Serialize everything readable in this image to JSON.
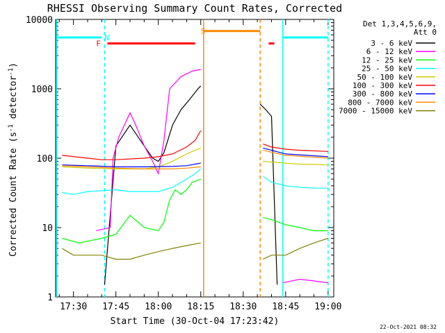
{
  "chart_data": {
    "type": "line",
    "title": "RHESSI Observing Summary Count Rates, Corrected",
    "xlabel": "Start Time (30-Oct-04 17:23:42)",
    "ylabel": "Corrected Count Rate (s⁻¹ detector⁻¹)",
    "ylabel_plain": "Corrected Count Rate (s",
    "ylabel_sup1": "-1",
    "ylabel_mid": " detector",
    "ylabel_sup2": "-1",
    "ylabel_end": ")",
    "yscale": "log",
    "ylim": [
      1,
      10000
    ],
    "xlim": [
      "17:23:42",
      "19:02:00"
    ],
    "y_ticks": [
      "1",
      "10",
      "100",
      "1000",
      "10000"
    ],
    "x_ticks": [
      "17:30",
      "17:45",
      "18:00",
      "18:15",
      "18:30",
      "18:45",
      "19:00"
    ],
    "legend_header": [
      "Det 1,3,4,5,6,9,",
      "Att 0"
    ],
    "legend_position": "right",
    "timestamp": "22-Oct-2021 08:32",
    "gap": [
      "18:16",
      "18:37"
    ],
    "series": [
      {
        "name": "3 - 6 keV",
        "color": "#000000",
        "x": [
          "17:41",
          "17:45",
          "17:50",
          "17:55",
          "17:58",
          "18:00",
          "18:02",
          "18:05",
          "18:08",
          "18:11",
          "18:14",
          "18:15",
          "18:36",
          "18:38",
          "18:40",
          "18:42"
        ],
        "y": [
          1.5,
          150,
          300,
          150,
          100,
          90,
          120,
          300,
          500,
          700,
          1000,
          1100,
          600,
          500,
          400,
          1.5
        ]
      },
      {
        "name": "6 - 12 keV",
        "color": "#ff00ff",
        "x": [
          "17:38",
          "17:43",
          "17:44",
          "17:46",
          "17:50",
          "17:52",
          "17:55",
          "17:58",
          "18:00",
          "18:02",
          "18:04",
          "18:08",
          "18:12",
          "18:15",
          "18:44",
          "18:50",
          "18:55",
          "19:00"
        ],
        "y": [
          9,
          10,
          100,
          200,
          450,
          300,
          150,
          90,
          60,
          180,
          1000,
          1500,
          1800,
          1900,
          1.6,
          1.8,
          1.7,
          1.6
        ]
      },
      {
        "name": "12 - 25 keV",
        "color": "#00ff00",
        "x": [
          "17:26",
          "17:32",
          "17:40",
          "17:45",
          "17:50",
          "17:55",
          "18:00",
          "18:02",
          "18:04",
          "18:06",
          "18:08",
          "18:10",
          "18:12",
          "18:15",
          "18:37",
          "18:40",
          "18:45",
          "18:50",
          "18:55",
          "19:00"
        ],
        "y": [
          7,
          6,
          7,
          8,
          15,
          10,
          9,
          12,
          25,
          35,
          30,
          35,
          45,
          50,
          14,
          13,
          11,
          10,
          9,
          9
        ]
      },
      {
        "name": "25 - 50 keV",
        "color": "#00ffff",
        "x": [
          "17:26",
          "17:30",
          "17:35",
          "17:40",
          "17:45",
          "17:50",
          "17:55",
          "18:00",
          "18:05",
          "18:10",
          "18:13",
          "18:15",
          "18:37",
          "18:40",
          "18:45",
          "18:50",
          "18:55",
          "19:00"
        ],
        "y": [
          32,
          30,
          33,
          34,
          35,
          33,
          33,
          33,
          38,
          50,
          60,
          70,
          55,
          45,
          40,
          38,
          37,
          37
        ]
      },
      {
        "name": "50 - 100 keV",
        "color": "#cccc00",
        "x": [
          "17:26",
          "17:35",
          "17:45",
          "17:55",
          "18:00",
          "18:05",
          "18:10",
          "18:13",
          "18:15",
          "18:37",
          "18:40",
          "18:45",
          "18:50",
          "19:00"
        ],
        "y": [
          75,
          72,
          70,
          70,
          75,
          90,
          115,
          130,
          140,
          90,
          88,
          85,
          82,
          80
        ]
      },
      {
        "name": "100 - 300 keV",
        "color": "#ff0000",
        "x": [
          "17:26",
          "17:35",
          "17:40",
          "17:45",
          "17:55",
          "18:00",
          "18:05",
          "18:10",
          "18:13",
          "18:15",
          "18:37",
          "18:40",
          "18:45",
          "18:50",
          "19:00"
        ],
        "y": [
          110,
          100,
          95,
          95,
          100,
          105,
          115,
          145,
          180,
          250,
          160,
          145,
          135,
          130,
          125
        ]
      },
      {
        "name": "300 - 800 keV",
        "color": "#0000ff",
        "x": [
          "17:26",
          "17:35",
          "17:45",
          "17:55",
          "18:05",
          "18:10",
          "18:15",
          "18:37",
          "18:45",
          "19:00"
        ],
        "y": [
          80,
          78,
          75,
          75,
          76,
          78,
          85,
          140,
          115,
          105
        ]
      },
      {
        "name": "800 - 7000 keV",
        "color": "#ff8800",
        "x": [
          "17:26",
          "17:35",
          "17:45",
          "17:55",
          "18:05",
          "18:10",
          "18:15",
          "18:37",
          "18:45",
          "19:00"
        ],
        "y": [
          78,
          75,
          72,
          70,
          70,
          72,
          75,
          130,
          110,
          100
        ]
      },
      {
        "name": "7000 - 15000 keV",
        "color": "#808000",
        "x": [
          "17:26",
          "17:30",
          "17:35",
          "17:40",
          "17:45",
          "17:50",
          "17:55",
          "18:00",
          "18:05",
          "18:10",
          "18:15",
          "18:37",
          "18:40",
          "18:45",
          "18:50",
          "18:55",
          "19:00"
        ],
        "y": [
          5,
          4,
          4,
          4,
          3.5,
          3.5,
          4,
          4.5,
          5,
          5.5,
          6,
          3.5,
          4,
          4,
          5,
          6,
          7
        ]
      }
    ],
    "flags": [
      {
        "label": "",
        "color": "#00ffff",
        "y": 5500,
        "x": [
          "17:24",
          "17:40"
        ]
      },
      {
        "label": "N",
        "color": "#00ffff",
        "y": 5500,
        "x": [
          "17:40",
          "17:40"
        ],
        "label_at": "17:41"
      },
      {
        "label": "",
        "color": "#00ffff",
        "y": 5500,
        "x": [
          "18:44",
          "19:00"
        ]
      },
      {
        "label": "F",
        "color": "#ff0000",
        "y": 4500,
        "x": [
          "17:42",
          "18:13"
        ],
        "label_at": "17:38"
      },
      {
        "label": "",
        "color": "#ff0000",
        "y": 4500,
        "x": [
          "18:39",
          "18:41"
        ]
      },
      {
        "label": "S",
        "color": "#ff8800",
        "y": 6800,
        "x": [
          "18:16",
          "18:36"
        ],
        "label_at": "18:15"
      }
    ],
    "vlines": [
      {
        "x": "17:24",
        "color": "#00ffff",
        "style": "solid"
      },
      {
        "x": "17:41",
        "color": "#00ffff",
        "style": "dashed"
      },
      {
        "x": "18:16",
        "color": "#ff8800",
        "style": "solid"
      },
      {
        "x": "18:36",
        "color": "#ff8800",
        "style": "dashed"
      },
      {
        "x": "18:44",
        "color": "#00ffff",
        "style": "solid"
      },
      {
        "x": "19:00",
        "color": "#00ffff",
        "style": "dashed"
      }
    ]
  }
}
